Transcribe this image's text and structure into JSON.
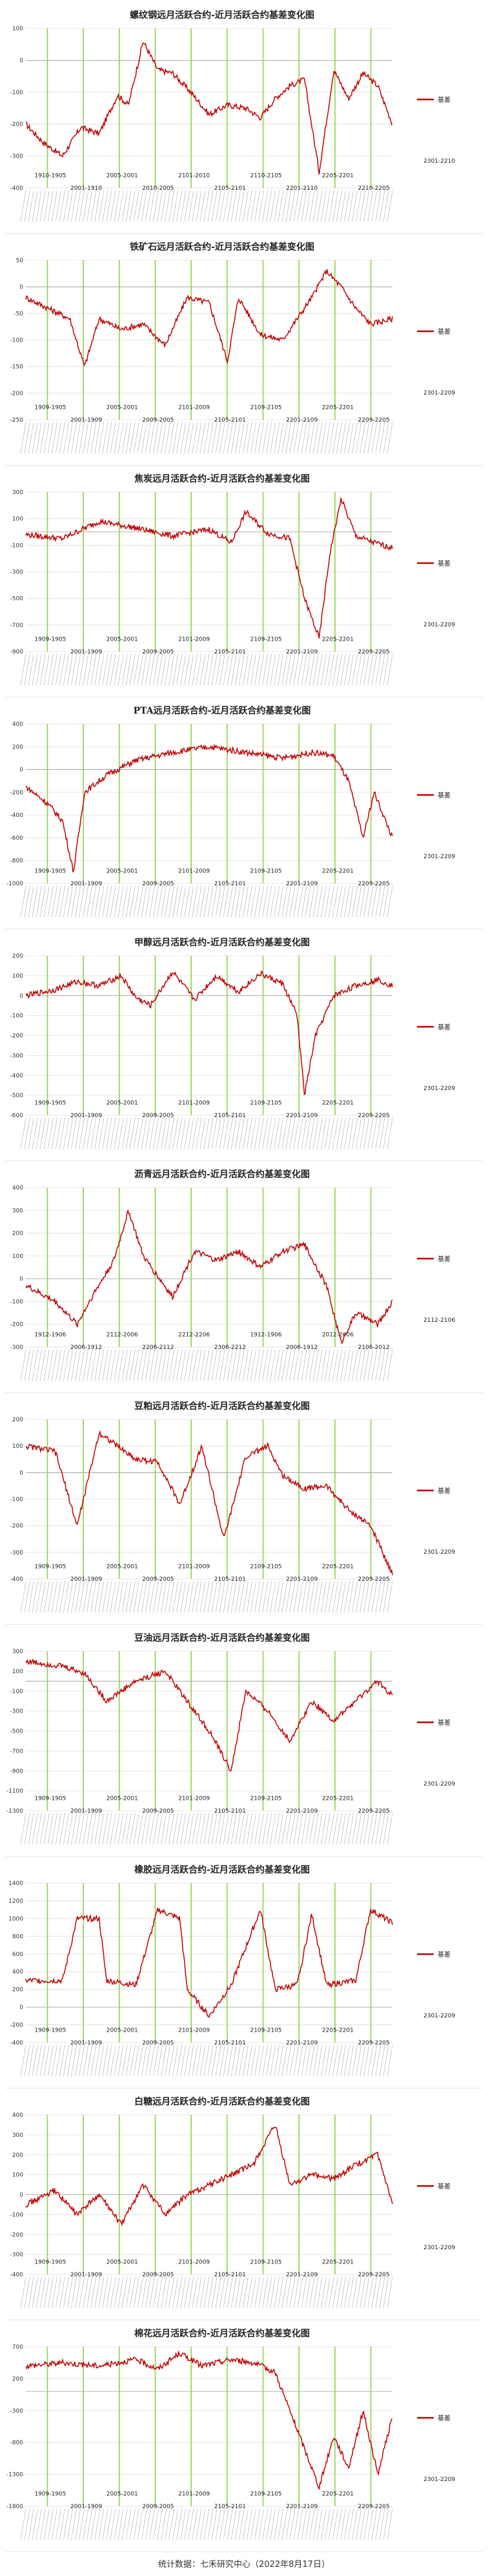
{
  "footer": "统计数据：七禾研究中心（2022年8月17日）",
  "legend_label": "基差",
  "chart_data": [
    {
      "type": "line",
      "title": "螺纹钢远月活跃合约-近月活跃合约基差变化图",
      "ylim": [
        -400,
        100
      ],
      "yticks": [
        -400,
        -300,
        -200,
        -100,
        0,
        100
      ],
      "legend_label": "基差",
      "period_labels": [
        "1910-1905",
        "2001-1910",
        "2005-2001",
        "2010-2005",
        "2101-2010",
        "2105-2101",
        "2110-2105",
        "2201-2110",
        "2205-2201",
        "2210-2205",
        "2301-2210"
      ],
      "keypoints": [
        [
          0,
          -200
        ],
        [
          0.05,
          -260
        ],
        [
          0.1,
          -300
        ],
        [
          0.15,
          -210
        ],
        [
          0.2,
          -230
        ],
        [
          0.25,
          -110
        ],
        [
          0.28,
          -140
        ],
        [
          0.32,
          60
        ],
        [
          0.36,
          -30
        ],
        [
          0.4,
          -40
        ],
        [
          0.45,
          -100
        ],
        [
          0.5,
          -170
        ],
        [
          0.55,
          -140
        ],
        [
          0.6,
          -150
        ],
        [
          0.64,
          -180
        ],
        [
          0.68,
          -120
        ],
        [
          0.72,
          -80
        ],
        [
          0.76,
          -60
        ],
        [
          0.8,
          -350
        ],
        [
          0.84,
          -30
        ],
        [
          0.88,
          -120
        ],
        [
          0.92,
          -40
        ],
        [
          0.96,
          -80
        ],
        [
          1,
          -200
        ]
      ]
    },
    {
      "type": "line",
      "title": "铁矿石远月活跃合约-近月活跃合约基差变化图",
      "ylim": [
        -250,
        50
      ],
      "yticks": [
        -250,
        -200,
        -150,
        -100,
        -50,
        0,
        50
      ],
      "legend_label": "基差",
      "period_labels": [
        "1909-1905",
        "2001-1909",
        "2005-2001",
        "2009-2005",
        "2101-2009",
        "2105-2101",
        "2109-2105",
        "2201-2109",
        "2205-2201",
        "2209-2205",
        "2301-2209"
      ],
      "keypoints": [
        [
          0,
          -20
        ],
        [
          0.06,
          -40
        ],
        [
          0.12,
          -60
        ],
        [
          0.16,
          -150
        ],
        [
          0.2,
          -60
        ],
        [
          0.26,
          -80
        ],
        [
          0.32,
          -70
        ],
        [
          0.38,
          -110
        ],
        [
          0.44,
          -20
        ],
        [
          0.5,
          -30
        ],
        [
          0.55,
          -140
        ],
        [
          0.58,
          -20
        ],
        [
          0.64,
          -90
        ],
        [
          0.7,
          -100
        ],
        [
          0.74,
          -60
        ],
        [
          0.78,
          -20
        ],
        [
          0.82,
          30
        ],
        [
          0.86,
          0
        ],
        [
          0.9,
          -40
        ],
        [
          0.94,
          -70
        ],
        [
          1,
          -60
        ]
      ]
    },
    {
      "type": "line",
      "title": "焦炭远月活跃合约-近月活跃合约基差变化图",
      "ylim": [
        -900,
        300
      ],
      "yticks": [
        -900,
        -700,
        -500,
        -300,
        -100,
        100,
        300
      ],
      "legend_label": "基差",
      "period_labels": [
        "1909-1905",
        "2001-1909",
        "2005-2001",
        "2009-2005",
        "2101-2009",
        "2105-2101",
        "2109-2105",
        "2201-2109",
        "2205-2201",
        "2209-2205",
        "2301-2209"
      ],
      "keypoints": [
        [
          0,
          -20
        ],
        [
          0.1,
          -50
        ],
        [
          0.2,
          80
        ],
        [
          0.3,
          30
        ],
        [
          0.4,
          -30
        ],
        [
          0.5,
          20
        ],
        [
          0.56,
          -80
        ],
        [
          0.6,
          150
        ],
        [
          0.66,
          -10
        ],
        [
          0.72,
          -50
        ],
        [
          0.76,
          -500
        ],
        [
          0.8,
          -800
        ],
        [
          0.83,
          -150
        ],
        [
          0.86,
          250
        ],
        [
          0.9,
          -30
        ],
        [
          0.95,
          -80
        ],
        [
          1,
          -120
        ]
      ]
    },
    {
      "type": "line",
      "title": "PTA远月活跃合约-近月活跃合约基差变化图",
      "ylim": [
        -1000,
        400
      ],
      "yticks": [
        -1000,
        -800,
        -600,
        -400,
        -200,
        0,
        200,
        400
      ],
      "legend_label": "基差",
      "period_labels": [
        "1909-1905",
        "2001-1909",
        "2005-2001",
        "2009-2005",
        "2101-2009",
        "2105-2101",
        "2109-2105",
        "2201-2109",
        "2205-2201",
        "2209-2205",
        "2301-2209"
      ],
      "keypoints": [
        [
          0,
          -150
        ],
        [
          0.06,
          -300
        ],
        [
          0.1,
          -450
        ],
        [
          0.13,
          -900
        ],
        [
          0.16,
          -200
        ],
        [
          0.22,
          -50
        ],
        [
          0.3,
          80
        ],
        [
          0.4,
          150
        ],
        [
          0.5,
          200
        ],
        [
          0.6,
          150
        ],
        [
          0.7,
          100
        ],
        [
          0.78,
          150
        ],
        [
          0.84,
          120
        ],
        [
          0.88,
          -100
        ],
        [
          0.92,
          -600
        ],
        [
          0.95,
          -200
        ],
        [
          1,
          -600
        ]
      ]
    },
    {
      "type": "line",
      "title": "甲醇远月活跃合约-近月活跃合约基差变化图",
      "ylim": [
        -600,
        200
      ],
      "yticks": [
        -600,
        -500,
        -400,
        -300,
        -200,
        -100,
        0,
        100,
        200
      ],
      "legend_label": "基差",
      "period_labels": [
        "1909-1905",
        "2001-1909",
        "2005-2001",
        "2009-2005",
        "2101-2009",
        "2105-2101",
        "2109-2105",
        "2201-2109",
        "2205-2201",
        "2209-2205",
        "2301-2209"
      ],
      "keypoints": [
        [
          0,
          0
        ],
        [
          0.08,
          30
        ],
        [
          0.14,
          70
        ],
        [
          0.2,
          50
        ],
        [
          0.26,
          100
        ],
        [
          0.3,
          -10
        ],
        [
          0.34,
          -50
        ],
        [
          0.4,
          120
        ],
        [
          0.46,
          -20
        ],
        [
          0.52,
          100
        ],
        [
          0.58,
          20
        ],
        [
          0.64,
          110
        ],
        [
          0.7,
          60
        ],
        [
          0.74,
          -100
        ],
        [
          0.76,
          -500
        ],
        [
          0.79,
          -200
        ],
        [
          0.84,
          0
        ],
        [
          0.9,
          50
        ],
        [
          0.96,
          80
        ],
        [
          1,
          50
        ]
      ]
    },
    {
      "type": "line",
      "title": "沥青远月活跃合约-近月活跃合约基差变化图",
      "ylim": [
        -300,
        400
      ],
      "yticks": [
        -300,
        -200,
        -100,
        0,
        100,
        200,
        300,
        400
      ],
      "legend_label": "基差",
      "period_labels": [
        "1912-1906",
        "2006-1912",
        "2112-2006",
        "2206-2112",
        "2212-2206",
        "2306-2212",
        "1912-1906",
        "2006-1912",
        "2012-2006",
        "2106-2012",
        "2112-2106"
      ],
      "keypoints": [
        [
          0,
          -30
        ],
        [
          0.08,
          -100
        ],
        [
          0.14,
          -200
        ],
        [
          0.18,
          -80
        ],
        [
          0.24,
          80
        ],
        [
          0.28,
          300
        ],
        [
          0.32,
          100
        ],
        [
          0.4,
          -80
        ],
        [
          0.46,
          120
        ],
        [
          0.52,
          80
        ],
        [
          0.58,
          120
        ],
        [
          0.64,
          50
        ],
        [
          0.7,
          120
        ],
        [
          0.76,
          150
        ],
        [
          0.82,
          -30
        ],
        [
          0.86,
          -280
        ],
        [
          0.9,
          -150
        ],
        [
          0.96,
          -200
        ],
        [
          1,
          -100
        ]
      ]
    },
    {
      "type": "line",
      "title": "豆粕远月活跃合约-近月活跃合约基差变化图",
      "ylim": [
        -400,
        200
      ],
      "yticks": [
        -400,
        -300,
        -200,
        -100,
        0,
        100,
        200
      ],
      "legend_label": "基差",
      "period_labels": [
        "1909-1905",
        "2001-1909",
        "2005-2001",
        "2009-2005",
        "2101-2009",
        "2105-2101",
        "2109-2105",
        "2201-2109",
        "2205-2201",
        "2209-2205",
        "2301-2209"
      ],
      "keypoints": [
        [
          0,
          100
        ],
        [
          0.08,
          80
        ],
        [
          0.14,
          -200
        ],
        [
          0.2,
          150
        ],
        [
          0.3,
          50
        ],
        [
          0.36,
          40
        ],
        [
          0.42,
          -120
        ],
        [
          0.48,
          100
        ],
        [
          0.54,
          -250
        ],
        [
          0.6,
          60
        ],
        [
          0.66,
          100
        ],
        [
          0.7,
          -10
        ],
        [
          0.76,
          -60
        ],
        [
          0.82,
          -50
        ],
        [
          0.88,
          -140
        ],
        [
          0.94,
          -200
        ],
        [
          1,
          -380
        ]
      ]
    },
    {
      "type": "line",
      "title": "豆油远月活跃合约-近月活跃合约基差变化图",
      "ylim": [
        -1300,
        300
      ],
      "yticks": [
        -1300,
        -1100,
        -900,
        -700,
        -500,
        -300,
        -100,
        100,
        300
      ],
      "legend_label": "基差",
      "period_labels": [
        "1909-1905",
        "2001-1909",
        "2005-2001",
        "2009-2005",
        "2101-2009",
        "2105-2101",
        "2109-2105",
        "2201-2109",
        "2205-2201",
        "2209-2205",
        "2301-2209"
      ],
      "keypoints": [
        [
          0,
          200
        ],
        [
          0.1,
          150
        ],
        [
          0.16,
          80
        ],
        [
          0.22,
          -200
        ],
        [
          0.3,
          0
        ],
        [
          0.38,
          100
        ],
        [
          0.44,
          -200
        ],
        [
          0.5,
          -500
        ],
        [
          0.56,
          -900
        ],
        [
          0.6,
          -100
        ],
        [
          0.66,
          -300
        ],
        [
          0.72,
          -600
        ],
        [
          0.78,
          -200
        ],
        [
          0.84,
          -400
        ],
        [
          0.9,
          -200
        ],
        [
          0.96,
          0
        ],
        [
          1,
          -150
        ]
      ]
    },
    {
      "type": "line",
      "title": "橡胶远月活跃合约-近月活跃合约基差变化图",
      "ylim": [
        -400,
        1400
      ],
      "yticks": [
        -400,
        -200,
        0,
        200,
        400,
        600,
        800,
        1000,
        1200,
        1400
      ],
      "legend_label": "基差",
      "period_labels": [
        "1909-1905",
        "2001-1909",
        "2005-2001",
        "2009-2005",
        "2101-2009",
        "2105-2101",
        "2109-2105",
        "2201-2109",
        "2205-2201",
        "2209-2205",
        "2301-2209"
      ],
      "keypoints": [
        [
          0,
          300
        ],
        [
          0.1,
          300
        ],
        [
          0.14,
          1000
        ],
        [
          0.2,
          1000
        ],
        [
          0.22,
          300
        ],
        [
          0.3,
          250
        ],
        [
          0.36,
          1100
        ],
        [
          0.42,
          1000
        ],
        [
          0.44,
          200
        ],
        [
          0.5,
          -100
        ],
        [
          0.56,
          250
        ],
        [
          0.64,
          1100
        ],
        [
          0.68,
          200
        ],
        [
          0.74,
          250
        ],
        [
          0.78,
          1050
        ],
        [
          0.82,
          250
        ],
        [
          0.9,
          300
        ],
        [
          0.94,
          1100
        ],
        [
          1,
          950
        ]
      ]
    },
    {
      "type": "line",
      "title": "白糖远月活跃合约-近月活跃合约基差变化图",
      "ylim": [
        -400,
        400
      ],
      "yticks": [
        -400,
        -300,
        -200,
        -100,
        0,
        100,
        200,
        300,
        400
      ],
      "legend_label": "基差",
      "period_labels": [
        "1909-1905",
        "2001-1909",
        "2005-2001",
        "2009-2005",
        "2101-2009",
        "2105-2101",
        "2109-2105",
        "2201-2109",
        "2205-2201",
        "2209-2205",
        "2301-2209"
      ],
      "keypoints": [
        [
          0,
          -50
        ],
        [
          0.08,
          20
        ],
        [
          0.14,
          -100
        ],
        [
          0.2,
          0
        ],
        [
          0.26,
          -150
        ],
        [
          0.32,
          50
        ],
        [
          0.38,
          -100
        ],
        [
          0.44,
          0
        ],
        [
          0.5,
          50
        ],
        [
          0.56,
          100
        ],
        [
          0.62,
          150
        ],
        [
          0.68,
          350
        ],
        [
          0.72,
          50
        ],
        [
          0.78,
          100
        ],
        [
          0.84,
          80
        ],
        [
          0.9,
          150
        ],
        [
          0.96,
          200
        ],
        [
          1,
          -50
        ]
      ]
    },
    {
      "type": "line",
      "title": "棉花远月活跃合约-近月活跃合约基差变化图",
      "ylim": [
        -1800,
        700
      ],
      "yticks": [
        -1800,
        -1300,
        -800,
        -300,
        200,
        700
      ],
      "legend_label": "基差",
      "period_labels": [
        "1909-1905",
        "2001-1909",
        "2005-2001",
        "2009-2005",
        "2101-2009",
        "2105-2101",
        "2109-2105",
        "2201-2109",
        "2205-2201",
        "2209-2205",
        "2301-2209"
      ],
      "keypoints": [
        [
          0,
          400
        ],
        [
          0.1,
          450
        ],
        [
          0.2,
          400
        ],
        [
          0.3,
          500
        ],
        [
          0.36,
          350
        ],
        [
          0.42,
          600
        ],
        [
          0.48,
          400
        ],
        [
          0.56,
          500
        ],
        [
          0.62,
          450
        ],
        [
          0.68,
          300
        ],
        [
          0.72,
          -300
        ],
        [
          0.76,
          -900
        ],
        [
          0.8,
          -1500
        ],
        [
          0.84,
          -700
        ],
        [
          0.88,
          -1200
        ],
        [
          0.92,
          -300
        ],
        [
          0.96,
          -1300
        ],
        [
          1,
          -400
        ]
      ]
    }
  ]
}
